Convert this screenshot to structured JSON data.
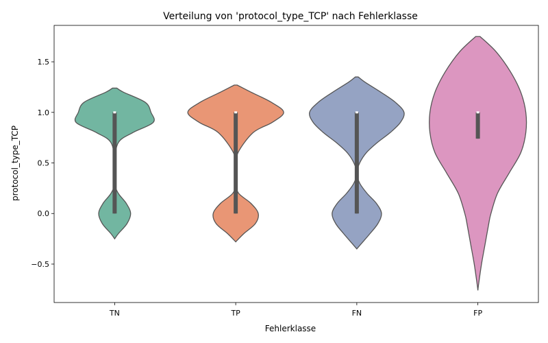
{
  "chart_data": {
    "type": "violin",
    "title": "Verteilung von 'protocol_type_TCP' nach Fehlerklasse",
    "xlabel": "Fehlerklasse",
    "ylabel": "protocol_type_TCP",
    "ylim": [
      -0.88,
      1.86
    ],
    "yticks": [
      -0.5,
      0.0,
      0.5,
      1.0,
      1.5
    ],
    "ytick_labels": [
      "−0.5",
      "0.0",
      "0.5",
      "1.0",
      "1.5"
    ],
    "grid": false,
    "legend": "none",
    "categories": [
      "TN",
      "TP",
      "FN",
      "FP"
    ],
    "series": [
      {
        "category": "TN",
        "color": "#72b6a1",
        "range": [
          -0.25,
          1.24
        ],
        "density": [
          [
            -0.25,
            0.0
          ],
          [
            -0.2,
            0.05
          ],
          [
            -0.1,
            0.17
          ],
          [
            0.0,
            0.22
          ],
          [
            0.1,
            0.16
          ],
          [
            0.2,
            0.05
          ],
          [
            0.3,
            0.0
          ],
          [
            0.5,
            0.0
          ],
          [
            0.7,
            0.05
          ],
          [
            0.8,
            0.25
          ],
          [
            0.9,
            0.53
          ],
          [
            1.0,
            0.5
          ],
          [
            1.1,
            0.42
          ],
          [
            1.2,
            0.12
          ],
          [
            1.24,
            0.03
          ]
        ],
        "quartiles": [
          0.0,
          1.0,
          1.0
        ],
        "whisker": [
          0.0,
          1.0
        ]
      },
      {
        "category": "TP",
        "color": "#e99675",
        "range": [
          -0.28,
          1.27
        ],
        "density": [
          [
            -0.28,
            0.0
          ],
          [
            -0.2,
            0.11
          ],
          [
            -0.1,
            0.27
          ],
          [
            0.0,
            0.31
          ],
          [
            0.1,
            0.21
          ],
          [
            0.2,
            0.04
          ],
          [
            0.3,
            0.0
          ],
          [
            0.45,
            0.0
          ],
          [
            0.6,
            0.03
          ],
          [
            0.8,
            0.24
          ],
          [
            0.9,
            0.5
          ],
          [
            1.0,
            0.66
          ],
          [
            1.1,
            0.49
          ],
          [
            1.2,
            0.21
          ],
          [
            1.27,
            0.02
          ]
        ],
        "quartiles": [
          0.0,
          1.0,
          1.0
        ],
        "whisker": [
          0.0,
          1.0
        ]
      },
      {
        "category": "FN",
        "color": "#95a3c3",
        "range": [
          -0.35,
          1.35
        ],
        "density": [
          [
            -0.35,
            0.0
          ],
          [
            -0.3,
            0.06
          ],
          [
            -0.2,
            0.18
          ],
          [
            -0.1,
            0.29
          ],
          [
            0.0,
            0.34
          ],
          [
            0.1,
            0.27
          ],
          [
            0.2,
            0.14
          ],
          [
            0.3,
            0.04
          ],
          [
            0.4,
            0.0
          ],
          [
            0.5,
            0.04
          ],
          [
            0.6,
            0.13
          ],
          [
            0.7,
            0.28
          ],
          [
            0.8,
            0.46
          ],
          [
            0.9,
            0.6
          ],
          [
            1.0,
            0.65
          ],
          [
            1.1,
            0.53
          ],
          [
            1.2,
            0.33
          ],
          [
            1.3,
            0.11
          ],
          [
            1.35,
            0.02
          ]
        ],
        "quartiles": [
          0.0,
          1.0,
          1.0
        ],
        "whisker": [
          0.0,
          1.0
        ]
      },
      {
        "category": "FP",
        "color": "#dc96c0",
        "range": [
          -0.76,
          1.75
        ],
        "density": [
          [
            -0.76,
            0.0
          ],
          [
            -0.7,
            0.01
          ],
          [
            -0.5,
            0.05
          ],
          [
            -0.3,
            0.1
          ],
          [
            -0.1,
            0.15
          ],
          [
            0.0,
            0.18
          ],
          [
            0.2,
            0.27
          ],
          [
            0.4,
            0.43
          ],
          [
            0.6,
            0.59
          ],
          [
            0.8,
            0.66
          ],
          [
            1.0,
            0.66
          ],
          [
            1.2,
            0.59
          ],
          [
            1.4,
            0.45
          ],
          [
            1.6,
            0.25
          ],
          [
            1.75,
            0.03
          ]
        ],
        "quartiles": [
          0.74,
          1.0,
          1.0
        ],
        "whisker": [
          0.74,
          1.0
        ]
      }
    ]
  }
}
